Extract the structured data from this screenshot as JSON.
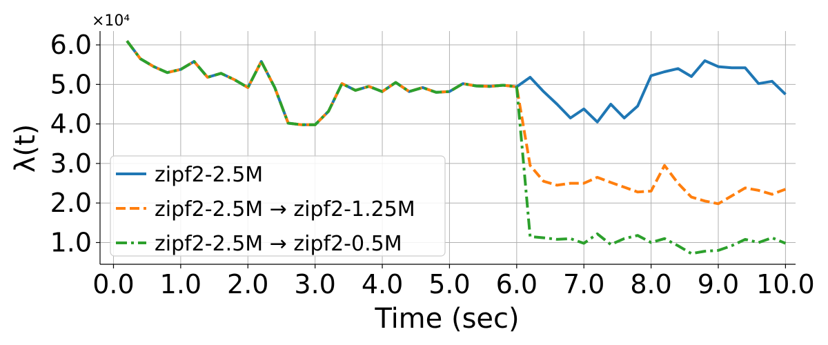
{
  "chart_data": {
    "type": "line",
    "xlabel": "Time (sec)",
    "ylabel": "λ(t)",
    "y_multiplier_label": "×10⁴",
    "xlim": [
      -0.2,
      10.15
    ],
    "ylim": [
      0.45,
      6.35
    ],
    "xticks": [
      0,
      1,
      2,
      3,
      4,
      5,
      6,
      7,
      8,
      9,
      10
    ],
    "xtick_labels": [
      "0.0",
      "1.0",
      "2.0",
      "3.0",
      "4.0",
      "5.0",
      "6.0",
      "7.0",
      "8.0",
      "9.0",
      "10.0"
    ],
    "yticks": [
      1,
      2,
      3,
      4,
      5,
      6
    ],
    "ytick_labels": [
      "1.0",
      "2.0",
      "3.0",
      "4.0",
      "5.0",
      "6.0"
    ],
    "grid": true,
    "legend_position": "lower-left",
    "series": [
      {
        "name": "zipf2-2.5M",
        "color": "#1f77b4",
        "style": "solid",
        "x": [
          0.2,
          0.4,
          0.6,
          0.8,
          1.0,
          1.2,
          1.4,
          1.6,
          1.8,
          2.0,
          2.2,
          2.4,
          2.6,
          2.8,
          3.0,
          3.2,
          3.4,
          3.6,
          3.8,
          4.0,
          4.2,
          4.4,
          4.6,
          4.8,
          5.0,
          5.2,
          5.4,
          5.6,
          5.8,
          6.0,
          6.2,
          6.4,
          6.6,
          6.8,
          7.0,
          7.2,
          7.4,
          7.6,
          7.8,
          8.0,
          8.2,
          8.4,
          8.6,
          8.8,
          9.0,
          9.2,
          9.4,
          9.6,
          9.8,
          10.0
        ],
        "y": [
          6.1,
          5.65,
          5.45,
          5.3,
          5.38,
          5.58,
          5.18,
          5.28,
          5.12,
          4.92,
          5.58,
          4.92,
          4.02,
          3.98,
          3.98,
          4.32,
          5.02,
          4.85,
          4.95,
          4.82,
          5.05,
          4.82,
          4.92,
          4.8,
          4.82,
          5.02,
          4.96,
          4.95,
          4.98,
          4.94,
          5.18,
          4.82,
          4.5,
          4.15,
          4.38,
          4.05,
          4.5,
          4.15,
          4.45,
          5.22,
          5.32,
          5.4,
          5.2,
          5.6,
          5.45,
          5.42,
          5.42,
          5.02,
          5.08,
          4.75
        ]
      },
      {
        "name": "zipf2-2.5M → zipf2-1.25M",
        "color": "#ff7f0e",
        "style": "dashed",
        "x": [
          0.2,
          0.4,
          0.6,
          0.8,
          1.0,
          1.2,
          1.4,
          1.6,
          1.8,
          2.0,
          2.2,
          2.4,
          2.6,
          2.8,
          3.0,
          3.2,
          3.4,
          3.6,
          3.8,
          4.0,
          4.2,
          4.4,
          4.6,
          4.8,
          5.0,
          5.2,
          5.4,
          5.6,
          5.8,
          6.0,
          6.2,
          6.4,
          6.6,
          6.8,
          7.0,
          7.2,
          7.4,
          7.6,
          7.8,
          8.0,
          8.2,
          8.4,
          8.6,
          8.8,
          9.0,
          9.2,
          9.4,
          9.6,
          9.8,
          10.0
        ],
        "y": [
          6.1,
          5.65,
          5.45,
          5.3,
          5.38,
          5.58,
          5.18,
          5.28,
          5.12,
          4.92,
          5.58,
          4.92,
          4.02,
          3.98,
          3.98,
          4.32,
          5.02,
          4.85,
          4.95,
          4.82,
          5.05,
          4.82,
          4.92,
          4.8,
          4.82,
          5.02,
          4.96,
          4.95,
          4.98,
          4.94,
          2.95,
          2.55,
          2.45,
          2.5,
          2.5,
          2.65,
          2.52,
          2.4,
          2.28,
          2.3,
          2.95,
          2.5,
          2.15,
          2.05,
          1.98,
          2.18,
          2.38,
          2.32,
          2.22,
          2.35
        ]
      },
      {
        "name": "zipf2-2.5M → zipf2-0.5M",
        "color": "#2ca02c",
        "style": "dashdot",
        "x": [
          0.2,
          0.4,
          0.6,
          0.8,
          1.0,
          1.2,
          1.4,
          1.6,
          1.8,
          2.0,
          2.2,
          2.4,
          2.6,
          2.8,
          3.0,
          3.2,
          3.4,
          3.6,
          3.8,
          4.0,
          4.2,
          4.4,
          4.6,
          4.8,
          5.0,
          5.2,
          5.4,
          5.6,
          5.8,
          6.0,
          6.2,
          6.4,
          6.6,
          6.8,
          7.0,
          7.2,
          7.4,
          7.6,
          7.8,
          8.0,
          8.2,
          8.4,
          8.6,
          8.8,
          9.0,
          9.2,
          9.4,
          9.6,
          9.8,
          10.0
        ],
        "y": [
          6.1,
          5.65,
          5.45,
          5.3,
          5.38,
          5.58,
          5.18,
          5.28,
          5.12,
          4.92,
          5.58,
          4.92,
          4.02,
          3.98,
          3.98,
          4.32,
          5.02,
          4.85,
          4.95,
          4.82,
          5.05,
          4.82,
          4.92,
          4.8,
          4.82,
          5.02,
          4.96,
          4.95,
          4.98,
          4.94,
          1.15,
          1.12,
          1.08,
          1.1,
          0.98,
          1.22,
          0.95,
          1.1,
          1.18,
          1.0,
          1.1,
          0.92,
          0.72,
          0.78,
          0.8,
          0.92,
          1.08,
          1.0,
          1.12,
          0.98
        ]
      }
    ]
  }
}
